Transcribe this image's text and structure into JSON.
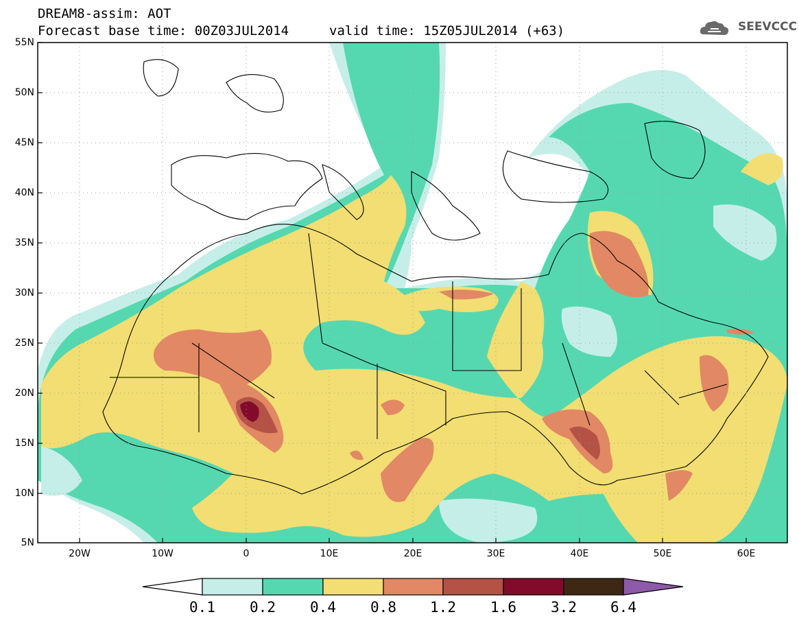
{
  "title": {
    "line1": "DREAM8-assim: AOT",
    "line2": "Forecast base time: 00Z03JUL2014",
    "line3": "valid time: 15Z05JUL2014 (+63)"
  },
  "logo": {
    "text": "SEEVCCC",
    "icon": "cloud-icon"
  },
  "map": {
    "lon_range": [
      -25,
      65
    ],
    "lat_range": [
      5,
      55
    ],
    "lat_ticks": [
      "55N",
      "50N",
      "45N",
      "40N",
      "35N",
      "30N",
      "25N",
      "20N",
      "15N",
      "10N",
      "5N"
    ],
    "lon_ticks": [
      "20W",
      "10W",
      "0",
      "10E",
      "20E",
      "30E",
      "40E",
      "50E",
      "60E"
    ]
  },
  "colorbar": {
    "labels": [
      "0.1",
      "0.2",
      "0.4",
      "0.8",
      "1.2",
      "1.6",
      "3.2",
      "6.4"
    ],
    "colors": [
      "#ffffff",
      "#c6eee8",
      "#55d8b0",
      "#f2de72",
      "#e28864",
      "#b45246",
      "#820a2a",
      "#3e2814",
      "#8c5aa8"
    ]
  }
}
